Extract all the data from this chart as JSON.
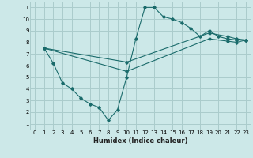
{
  "xlabel": "Humidex (Indice chaleur)",
  "bg_color": "#cce8e8",
  "grid_color": "#aacccc",
  "line_color": "#1a6b6b",
  "xlim": [
    -0.5,
    23.5
  ],
  "ylim": [
    0.5,
    11.5
  ],
  "xticks": [
    0,
    1,
    2,
    3,
    4,
    5,
    6,
    7,
    8,
    9,
    10,
    11,
    12,
    13,
    14,
    15,
    16,
    17,
    18,
    19,
    20,
    21,
    22,
    23
  ],
  "yticks": [
    1,
    2,
    3,
    4,
    5,
    6,
    7,
    8,
    9,
    10,
    11
  ],
  "series": [
    {
      "x": [
        1,
        2,
        3,
        4,
        5,
        6,
        7,
        8,
        9,
        10,
        11,
        12,
        13,
        14,
        15,
        16,
        17,
        18,
        19,
        20,
        21,
        22,
        23
      ],
      "y": [
        7.5,
        6.2,
        4.5,
        4.0,
        3.2,
        2.7,
        2.4,
        1.3,
        2.2,
        5.0,
        8.3,
        11.0,
        11.0,
        10.2,
        10.0,
        9.7,
        9.2,
        8.5,
        9.0,
        8.5,
        8.3,
        8.2,
        8.2
      ]
    },
    {
      "x": [
        1,
        10,
        19,
        21,
        22,
        23
      ],
      "y": [
        7.5,
        6.3,
        8.8,
        8.5,
        8.3,
        8.2
      ]
    },
    {
      "x": [
        1,
        10,
        19,
        21,
        22,
        23
      ],
      "y": [
        7.5,
        5.5,
        8.3,
        8.1,
        8.0,
        8.2
      ]
    }
  ]
}
